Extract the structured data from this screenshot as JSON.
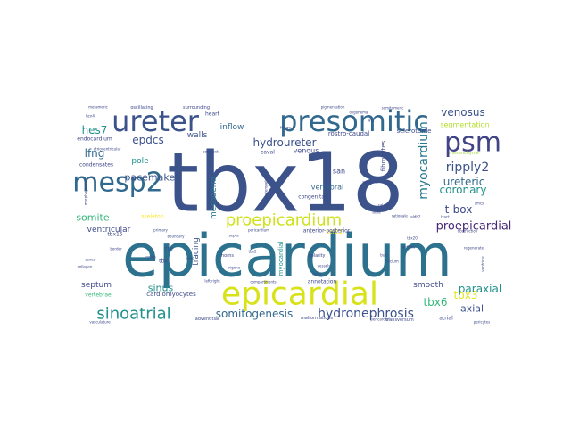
{
  "words": [
    {
      "text": "tbx18",
      "color": "#3b528b"
    },
    {
      "text": "epicardium",
      "color": "#2c728e"
    },
    {
      "text": "epicardial",
      "color": "#d8e219"
    },
    {
      "text": "presomitic",
      "color": "#31688e"
    },
    {
      "text": "ureter",
      "color": "#3b528b"
    },
    {
      "text": "psm",
      "color": "#414487"
    },
    {
      "text": "mesp2",
      "color": "#31688e"
    },
    {
      "text": "proepicardium",
      "color": "#d0e11c"
    },
    {
      "text": "sinoatrial",
      "color": "#21918c"
    },
    {
      "text": "hydronephrosis",
      "color": "#3b528b"
    },
    {
      "text": "myocardium",
      "color": "#2a788e"
    },
    {
      "text": "somitogenesis",
      "color": "#31688e"
    },
    {
      "text": "proepicardial",
      "color": "#482878"
    },
    {
      "text": "ripply2",
      "color": "#3b528b"
    },
    {
      "text": "venosus",
      "color": "#3b528b"
    },
    {
      "text": "ureteric",
      "color": "#31688e"
    },
    {
      "text": "coronary",
      "color": "#21918c"
    },
    {
      "text": "t-box",
      "color": "#3e4989"
    },
    {
      "text": "tbx3",
      "color": "#e5e419"
    },
    {
      "text": "tbx6",
      "color": "#35b779"
    },
    {
      "text": "paraxial",
      "color": "#21918c"
    },
    {
      "text": "axial",
      "color": "#3b528b"
    },
    {
      "text": "hes7",
      "color": "#21918c"
    },
    {
      "text": "lfng",
      "color": "#31688e"
    },
    {
      "text": "epdcs",
      "color": "#3b528b"
    },
    {
      "text": "hydroureter",
      "color": "#3b528b"
    },
    {
      "text": "pacemaker",
      "color": "#3b528b"
    },
    {
      "text": "somite",
      "color": "#35b779"
    },
    {
      "text": "ventricular",
      "color": "#3e4989"
    },
    {
      "text": "sinus",
      "color": "#21918c"
    },
    {
      "text": "septum",
      "color": "#3e4989"
    },
    {
      "text": "segmentation",
      "color": "#b5de2b"
    },
    {
      "text": "smooth",
      "color": "#3e4989"
    },
    {
      "text": "mesoderm",
      "color": "#2a788e"
    },
    {
      "text": "tracing",
      "color": "#3b528b"
    },
    {
      "text": "pole",
      "color": "#21918c"
    },
    {
      "text": "inflow",
      "color": "#31688e"
    },
    {
      "text": "walls",
      "color": "#3b528b"
    },
    {
      "text": "venous",
      "color": "#3e4989"
    },
    {
      "text": "vertebral",
      "color": "#31688e"
    },
    {
      "text": "san",
      "color": "#3e4989"
    },
    {
      "text": "fibrocytes",
      "color": "#3e4989"
    },
    {
      "text": "sclerotome",
      "color": "#3e4989"
    },
    {
      "text": "rostro-caudal",
      "color": "#3e4989"
    },
    {
      "text": "tcf21",
      "color": "#fde725"
    },
    {
      "text": "anterior-posterior",
      "color": "#3e4989"
    },
    {
      "text": "cardiomyocytes",
      "color": "#3e4989"
    },
    {
      "text": "endocardium",
      "color": "#3e4989"
    },
    {
      "text": "condensates",
      "color": "#3e4989"
    },
    {
      "text": "vertebrae",
      "color": "#35b779"
    },
    {
      "text": "heart",
      "color": "#3e4989"
    },
    {
      "text": "skeleton",
      "color": "#fde725"
    },
    {
      "text": "congenital",
      "color": "#3e4989"
    },
    {
      "text": "mesenchyme",
      "color": "#a0da39"
    },
    {
      "text": "caval",
      "color": "#3e4989"
    },
    {
      "text": "myocardial",
      "color": "#21918c"
    },
    {
      "text": "annotation",
      "color": "#3e4989"
    },
    {
      "text": "atrial",
      "color": "#3e4989"
    },
    {
      "text": "adventitial",
      "color": "#3e4989"
    },
    {
      "text": "malformations",
      "color": "#3e4989"
    },
    {
      "text": "transversum",
      "color": "#3e4989"
    },
    {
      "text": "polarity",
      "color": "#3e4989"
    },
    {
      "text": "horns",
      "color": "#3e4989"
    },
    {
      "text": "tbx15",
      "color": "#3e4989"
    },
    {
      "text": "tbx",
      "color": "#3e4989"
    },
    {
      "text": "cre",
      "color": "#3e4989"
    },
    {
      "text": "surrounding",
      "color": "#3e4989"
    },
    {
      "text": "oscillating",
      "color": "#3e4989"
    },
    {
      "text": "metameric",
      "color": "#3e4989"
    },
    {
      "text": "hcn4",
      "color": "#3e4989"
    },
    {
      "text": "atrioventricular",
      "color": "#3e4989"
    },
    {
      "text": "compact",
      "color": "#3e4989"
    },
    {
      "text": "fringe",
      "color": "#3e4989"
    },
    {
      "text": "raldh2",
      "color": "#3e4989"
    },
    {
      "text": "tract",
      "color": "#3e4989"
    },
    {
      "text": "obstruction",
      "color": "#3e4989"
    },
    {
      "text": "bud",
      "color": "#3e4989"
    },
    {
      "text": "calcium",
      "color": "#3e4989"
    },
    {
      "text": "atria",
      "color": "#3e4989"
    },
    {
      "text": "outflow",
      "color": "#3e4989"
    },
    {
      "text": "primary",
      "color": "#3e4989"
    },
    {
      "text": "notch",
      "color": "#3e4989"
    },
    {
      "text": "border",
      "color": "#3e4989"
    },
    {
      "text": "veins",
      "color": "#3e4989"
    },
    {
      "text": "vessels",
      "color": "#3e4989"
    },
    {
      "text": "pericardium",
      "color": "#3e4989"
    },
    {
      "text": "pericardial",
      "color": "#3e4989"
    },
    {
      "text": "ureteropelvic",
      "color": "#3e4989"
    },
    {
      "text": "segment",
      "color": "#3e4989"
    },
    {
      "text": "ventricle",
      "color": "#3e4989"
    },
    {
      "text": "smcs",
      "color": "#3e4989"
    },
    {
      "text": "tbx20",
      "color": "#3e4989"
    },
    {
      "text": "wt1",
      "color": "#3e4989"
    },
    {
      "text": "boundary",
      "color": "#3e4989"
    },
    {
      "text": "morphogenesis",
      "color": "#3e4989"
    },
    {
      "text": "dx60",
      "color": "#3e4989"
    },
    {
      "text": "left-right",
      "color": "#3e4989"
    },
    {
      "text": "tbx2",
      "color": "#3e4989"
    },
    {
      "text": "trigone",
      "color": "#3e4989"
    },
    {
      "text": "compartments",
      "color": "#3e4989"
    },
    {
      "text": "pigmentation",
      "color": "#3e4989"
    },
    {
      "text": "vasculature",
      "color": "#3e4989"
    },
    {
      "text": "oligohema",
      "color": "#3e4989"
    },
    {
      "text": "somitomeric",
      "color": "#3e4989"
    },
    {
      "text": "rationale",
      "color": "#3e4989"
    },
    {
      "text": "regenerate",
      "color": "#3e4989"
    },
    {
      "text": "calculi",
      "color": "#3e4989"
    },
    {
      "text": "pericytes",
      "color": "#3e4989"
    },
    {
      "text": "sexes",
      "color": "#3e4989"
    },
    {
      "text": "collagen",
      "color": "#3e4989"
    },
    {
      "text": "septa",
      "color": "#3e4989"
    }
  ]
}
